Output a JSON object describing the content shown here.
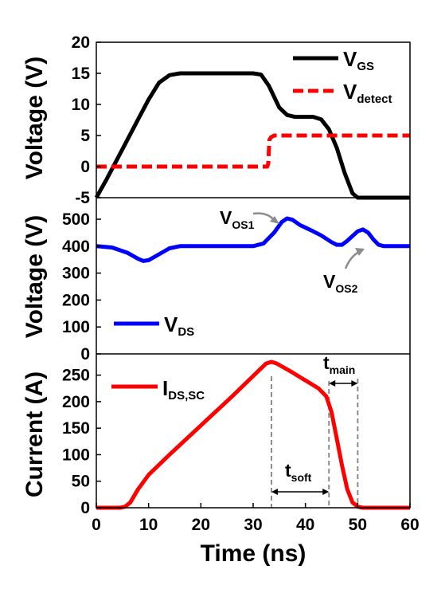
{
  "chart_data": [
    {
      "type": "line",
      "ylabel": "Voltage (V)",
      "ylim": [
        -5,
        20
      ],
      "yticks": [
        "-5",
        "0",
        "5",
        "10",
        "15",
        "20"
      ],
      "xlim": [
        0,
        60
      ],
      "legend_position": "top-right",
      "series": [
        {
          "name": "V",
          "name_sub": "GS",
          "color": "#000000",
          "style": "solid",
          "points": [
            [
              0,
              -5
            ],
            [
              2,
              -2
            ],
            [
              4,
              1.2
            ],
            [
              6,
              4.4
            ],
            [
              8,
              7.6
            ],
            [
              10,
              10.8
            ],
            [
              12,
              13.5
            ],
            [
              14,
              14.7
            ],
            [
              16,
              15
            ],
            [
              30,
              15
            ],
            [
              31.5,
              14.8
            ],
            [
              33,
              13
            ],
            [
              35,
              9.5
            ],
            [
              36.5,
              8.3
            ],
            [
              38,
              8
            ],
            [
              41.5,
              8
            ],
            [
              43,
              7.6
            ],
            [
              44.5,
              6
            ],
            [
              46,
              3
            ],
            [
              47.5,
              -1
            ],
            [
              49,
              -4.3
            ],
            [
              50,
              -5
            ],
            [
              60,
              -5
            ]
          ]
        },
        {
          "name": "V",
          "name_sub": "detect",
          "color": "#ff0000",
          "style": "dashed",
          "points": [
            [
              0,
              0
            ],
            [
              32.7,
              0
            ],
            [
              32.9,
              0.5
            ],
            [
              33.1,
              4.3
            ],
            [
              33.4,
              4.7
            ],
            [
              34,
              5
            ],
            [
              60,
              5
            ]
          ]
        }
      ]
    },
    {
      "type": "line",
      "ylabel": "Voltage (V)",
      "ylim": [
        0,
        580
      ],
      "yticks": [
        "0",
        "100",
        "200",
        "300",
        "400",
        "500"
      ],
      "xlim": [
        0,
        60
      ],
      "legend_position": "bottom-left",
      "series": [
        {
          "name": "V",
          "name_sub": "DS",
          "color": "#0000ff",
          "style": "solid",
          "points": [
            [
              0,
              400
            ],
            [
              3,
              395
            ],
            [
              6,
              375
            ],
            [
              8,
              353
            ],
            [
              9,
              345
            ],
            [
              10,
              348
            ],
            [
              12,
              370
            ],
            [
              14,
              392
            ],
            [
              16,
              400
            ],
            [
              30,
              400
            ],
            [
              32,
              410
            ],
            [
              34,
              450
            ],
            [
              35.5,
              490
            ],
            [
              36.5,
              503
            ],
            [
              37.5,
              498
            ],
            [
              39,
              478
            ],
            [
              41,
              460
            ],
            [
              43,
              440
            ],
            [
              45,
              415
            ],
            [
              46,
              405
            ],
            [
              47,
              405
            ],
            [
              48,
              420
            ],
            [
              50,
              455
            ],
            [
              51,
              462
            ],
            [
              52,
              450
            ],
            [
              53,
              425
            ],
            [
              54,
              405
            ],
            [
              55,
              400
            ],
            [
              60,
              400
            ]
          ]
        }
      ],
      "annotations": [
        {
          "text": "V",
          "sub": "OS1",
          "x": 36.5,
          "y": 503
        },
        {
          "text": "V",
          "sub": "OS2",
          "x": 51,
          "y": 462
        }
      ]
    },
    {
      "type": "line",
      "ylabel": "Current (A)",
      "xlabel": "Time (ns)",
      "ylim": [
        0,
        290
      ],
      "yticks": [
        "0",
        "50",
        "100",
        "150",
        "200",
        "250"
      ],
      "xlim": [
        0,
        60
      ],
      "xticks": [
        "0",
        "10",
        "20",
        "30",
        "40",
        "50",
        "60"
      ],
      "legend_position": "top-left",
      "series": [
        {
          "name": "I",
          "name_sub": "DS,SC",
          "color": "#ff0000",
          "style": "solid",
          "points": [
            [
              0,
              0
            ],
            [
              4.5,
              0
            ],
            [
              5.5,
              2
            ],
            [
              6.5,
              10
            ],
            [
              8,
              35
            ],
            [
              10,
              62
            ],
            [
              14,
              100
            ],
            [
              20,
              155
            ],
            [
              26,
              210
            ],
            [
              31,
              258
            ],
            [
              32.5,
              272
            ],
            [
              33.5,
              275
            ],
            [
              34.5,
              272
            ],
            [
              37,
              258
            ],
            [
              40,
              240
            ],
            [
              42.5,
              225
            ],
            [
              44,
              210
            ],
            [
              45,
              180
            ],
            [
              46,
              130
            ],
            [
              47,
              80
            ],
            [
              48,
              35
            ],
            [
              49,
              10
            ],
            [
              50,
              2
            ],
            [
              51,
              0
            ],
            [
              60,
              0
            ]
          ]
        }
      ],
      "markers": [
        {
          "label": "t",
          "sub": "soft",
          "from": 33.5,
          "to": 44.5
        },
        {
          "label": "t",
          "sub": "main",
          "from": 44.5,
          "to": 50
        }
      ]
    }
  ]
}
